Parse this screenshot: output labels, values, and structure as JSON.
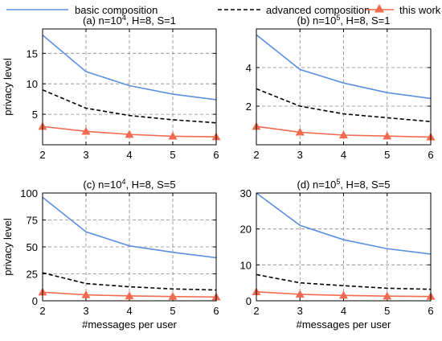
{
  "legend": {
    "items": [
      {
        "name": "basic composition",
        "color": "#5b8fe0",
        "style": "solid",
        "marker": "none"
      },
      {
        "name": "advanced composition",
        "color": "#000000",
        "style": "dashed",
        "marker": "none"
      },
      {
        "name": "this work",
        "color": "#f26a4f",
        "style": "solid",
        "marker": "triangle"
      }
    ]
  },
  "chart_data": [
    {
      "type": "line",
      "title_prefix": "(a) n=10",
      "title_sup": "4",
      "title_suffix": ", H=8, S=1",
      "ylabel": "privacy level",
      "xlabel": "",
      "x": [
        2,
        3,
        4,
        5,
        6
      ],
      "xlim": [
        2,
        6
      ],
      "ylim": [
        0,
        19
      ],
      "yticks": [
        5,
        10,
        15
      ],
      "grid": true,
      "series": [
        {
          "name": "basic composition",
          "values": [
            18.0,
            12.0,
            9.7,
            8.3,
            7.4
          ]
        },
        {
          "name": "advanced composition",
          "values": [
            9.0,
            6.0,
            4.8,
            4.1,
            3.6
          ]
        },
        {
          "name": "this work",
          "values": [
            3.0,
            2.2,
            1.7,
            1.4,
            1.3
          ]
        }
      ]
    },
    {
      "type": "line",
      "title_prefix": "(b) n=10",
      "title_sup": "5",
      "title_suffix": ", H=8, S=1",
      "ylabel": "",
      "xlabel": "",
      "x": [
        2,
        3,
        4,
        5,
        6
      ],
      "xlim": [
        2,
        6
      ],
      "ylim": [
        0,
        6
      ],
      "yticks": [
        2,
        4
      ],
      "grid": true,
      "series": [
        {
          "name": "basic composition",
          "values": [
            5.7,
            3.9,
            3.2,
            2.7,
            2.4
          ]
        },
        {
          "name": "advanced composition",
          "values": [
            2.9,
            2.0,
            1.6,
            1.4,
            1.2
          ]
        },
        {
          "name": "this work",
          "values": [
            0.95,
            0.65,
            0.5,
            0.45,
            0.4
          ]
        }
      ]
    },
    {
      "type": "line",
      "title_prefix": "(c) n=10",
      "title_sup": "4",
      "title_suffix": ", H=8, S=5",
      "ylabel": "privacy level",
      "xlabel": "#messages per user",
      "x": [
        2,
        3,
        4,
        5,
        6
      ],
      "xlim": [
        2,
        6
      ],
      "ylim": [
        0,
        100
      ],
      "yticks": [
        0,
        25,
        50,
        75,
        100
      ],
      "grid": true,
      "series": [
        {
          "name": "basic composition",
          "values": [
            96,
            64,
            51,
            45,
            40
          ]
        },
        {
          "name": "advanced composition",
          "values": [
            26,
            16,
            13,
            11,
            10
          ]
        },
        {
          "name": "this work",
          "values": [
            8,
            5.5,
            4.5,
            4,
            3.5
          ]
        }
      ]
    },
    {
      "type": "line",
      "title_prefix": "(d) n=10",
      "title_sup": "5",
      "title_suffix": ", H=8, S=5",
      "ylabel": "",
      "xlabel": "#messages per user",
      "x": [
        2,
        3,
        4,
        5,
        6
      ],
      "xlim": [
        2,
        6
      ],
      "ylim": [
        0,
        30
      ],
      "yticks": [
        0,
        10,
        20,
        30
      ],
      "grid": true,
      "series": [
        {
          "name": "basic composition",
          "values": [
            30,
            21,
            17,
            14.5,
            13
          ]
        },
        {
          "name": "advanced composition",
          "values": [
            7.3,
            5.0,
            4.2,
            3.5,
            3.2
          ]
        },
        {
          "name": "this work",
          "values": [
            2.5,
            1.8,
            1.5,
            1.3,
            1.2
          ]
        }
      ]
    }
  ]
}
